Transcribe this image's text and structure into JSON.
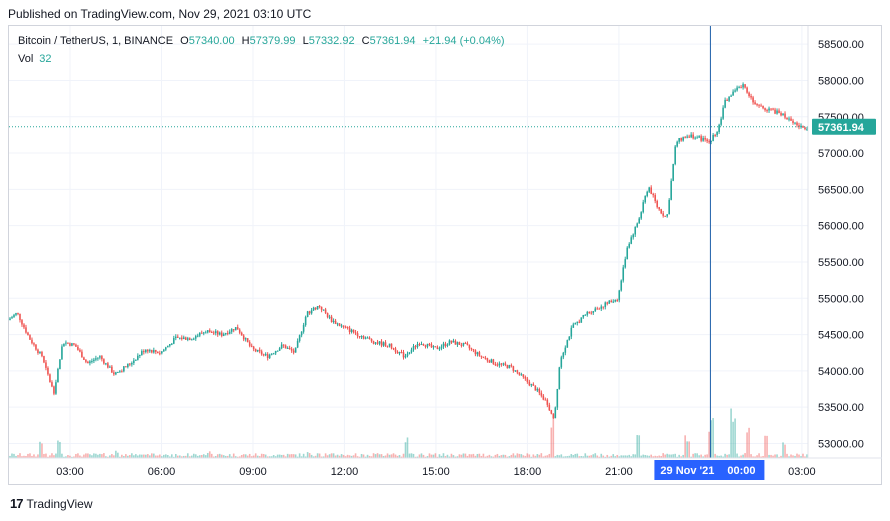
{
  "published": "Published on TradingView.com, Nov 29, 2021 03:10 UTC",
  "legend": {
    "symbol": "Bitcoin / TetherUS, 1, BINANCE",
    "o_label": "O",
    "o_value": "57340.00",
    "h_label": "H",
    "h_value": "57379.99",
    "l_label": "L",
    "l_value": "57332.92",
    "c_label": "C",
    "c_value": "57361.94",
    "change": "+21.94 (+0.04%)"
  },
  "volume": {
    "label": "Vol",
    "value": "32"
  },
  "footer": {
    "logo_icon": "tradingview-logo-icon",
    "logo_mark": "17",
    "brand": "TradingView"
  },
  "colors": {
    "up": "#26a69a",
    "down": "#ef5350",
    "crosshair": "#2962ff",
    "crosshair_line": "#1e5fa8",
    "price_tag": "#26a69a"
  },
  "chart_data": {
    "type": "candlestick",
    "symbol": "BTCUSDT",
    "interval": "1",
    "exchange": "BINANCE",
    "y_ticks": [
      53000,
      53500,
      54000,
      54500,
      55000,
      55500,
      56000,
      56500,
      57000,
      57500,
      58000,
      58500
    ],
    "y_tick_labels": [
      "53000.00",
      "53500.00",
      "54000.00",
      "54500.00",
      "55000.00",
      "55500.00",
      "56000.00",
      "56500.00",
      "57000.00",
      "57500.00",
      "58000.00",
      "58500.00"
    ],
    "x_ticks": [
      "03:00",
      "06:00",
      "09:00",
      "12:00",
      "15:00",
      "18:00",
      "21:00",
      "00:00",
      "03:00"
    ],
    "x_tick_hours": [
      3,
      6,
      9,
      12,
      15,
      18,
      21,
      24,
      27
    ],
    "x_range_hours": [
      1,
      27.2
    ],
    "ylim": [
      52800,
      58750
    ],
    "last_price": 57361.94,
    "last_price_label": "57361.94",
    "crosshair": {
      "date_label": "29 Nov '21",
      "time_label": "00:00",
      "hour": 24
    },
    "grid": true,
    "price_path": [
      [
        1.0,
        54700
      ],
      [
        1.3,
        54800
      ],
      [
        1.7,
        54450
      ],
      [
        2.1,
        54200
      ],
      [
        2.5,
        53700
      ],
      [
        2.8,
        54400
      ],
      [
        3.2,
        54350
      ],
      [
        3.6,
        54100
      ],
      [
        4.0,
        54200
      ],
      [
        4.5,
        53950
      ],
      [
        5.0,
        54100
      ],
      [
        5.5,
        54300
      ],
      [
        6.0,
        54250
      ],
      [
        6.5,
        54450
      ],
      [
        7.0,
        54450
      ],
      [
        7.5,
        54550
      ],
      [
        8.0,
        54500
      ],
      [
        8.5,
        54600
      ],
      [
        9.0,
        54300
      ],
      [
        9.5,
        54200
      ],
      [
        10.0,
        54350
      ],
      [
        10.4,
        54250
      ],
      [
        10.8,
        54800
      ],
      [
        11.2,
        54900
      ],
      [
        11.6,
        54700
      ],
      [
        12.0,
        54600
      ],
      [
        12.5,
        54500
      ],
      [
        13.0,
        54400
      ],
      [
        13.5,
        54350
      ],
      [
        14.0,
        54200
      ],
      [
        14.5,
        54400
      ],
      [
        15.0,
        54300
      ],
      [
        15.5,
        54400
      ],
      [
        16.0,
        54350
      ],
      [
        16.5,
        54200
      ],
      [
        17.0,
        54100
      ],
      [
        17.5,
        54050
      ],
      [
        17.9,
        53900
      ],
      [
        18.3,
        53750
      ],
      [
        18.7,
        53550
      ],
      [
        18.9,
        53300
      ],
      [
        19.1,
        54150
      ],
      [
        19.5,
        54600
      ],
      [
        20.0,
        54800
      ],
      [
        20.5,
        54900
      ],
      [
        21.0,
        55000
      ],
      [
        21.3,
        55700
      ],
      [
        21.7,
        56100
      ],
      [
        22.0,
        56550
      ],
      [
        22.3,
        56250
      ],
      [
        22.6,
        56100
      ],
      [
        22.9,
        57150
      ],
      [
        23.3,
        57250
      ],
      [
        23.7,
        57200
      ],
      [
        24.0,
        57150
      ],
      [
        24.3,
        57350
      ],
      [
        24.5,
        57700
      ],
      [
        24.8,
        57850
      ],
      [
        25.1,
        57950
      ],
      [
        25.5,
        57650
      ],
      [
        26.0,
        57600
      ],
      [
        26.5,
        57500
      ],
      [
        27.0,
        57350
      ],
      [
        27.2,
        57362
      ]
    ],
    "volume_spikes": [
      [
        2.0,
        55
      ],
      [
        2.6,
        48
      ],
      [
        4.5,
        20
      ],
      [
        7.5,
        22
      ],
      [
        10.8,
        18
      ],
      [
        14.0,
        60
      ],
      [
        18.8,
        110
      ],
      [
        21.6,
        85
      ],
      [
        23.2,
        70
      ],
      [
        24.0,
        115
      ],
      [
        24.7,
        140
      ],
      [
        25.2,
        110
      ],
      [
        25.8,
        60
      ],
      [
        26.4,
        45
      ]
    ]
  }
}
